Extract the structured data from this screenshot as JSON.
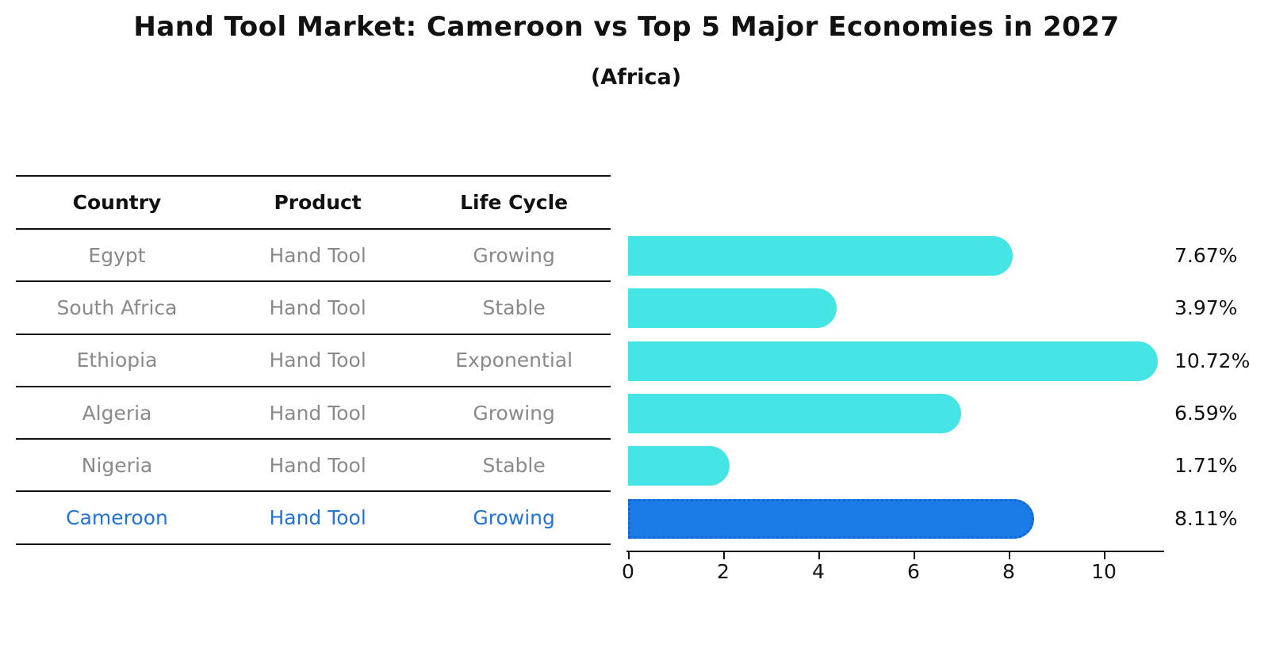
{
  "title": "Hand Tool Market: Cameroon vs Top 5 Major Economies in 2027",
  "subtitle": "(Africa)",
  "table": {
    "columns": [
      "Country",
      "Product",
      "Life Cycle"
    ],
    "rows": [
      {
        "country": "Egypt",
        "product": "Hand Tool",
        "life_cycle": "Growing",
        "highlight": false
      },
      {
        "country": "South Africa",
        "product": "Hand Tool",
        "life_cycle": "Stable",
        "highlight": false
      },
      {
        "country": "Ethiopia",
        "product": "Hand Tool",
        "life_cycle": "Exponential",
        "highlight": false
      },
      {
        "country": "Algeria",
        "product": "Hand Tool",
        "life_cycle": "Growing",
        "highlight": false
      },
      {
        "country": "Nigeria",
        "product": "Hand Tool",
        "life_cycle": "Stable",
        "highlight": false
      },
      {
        "country": "Cameroon",
        "product": "Hand Tool",
        "life_cycle": "Growing",
        "highlight": true
      }
    ]
  },
  "chart_data": {
    "type": "bar",
    "orientation": "horizontal",
    "title": "Hand Tool Market: Cameroon vs Top 5 Major Economies in 2027",
    "subtitle": "(Africa)",
    "categories": [
      "Egypt",
      "South Africa",
      "Ethiopia",
      "Algeria",
      "Nigeria",
      "Cameroon"
    ],
    "values": [
      7.67,
      3.97,
      10.72,
      6.59,
      1.71,
      8.11
    ],
    "value_labels": [
      "7.67%",
      "3.97%",
      "10.72%",
      "6.59%",
      "1.71%",
      "8.11%"
    ],
    "xlabel": "",
    "ylabel": "",
    "xticks": [
      0,
      2,
      4,
      6,
      8,
      10
    ],
    "xlim": [
      0,
      11.3
    ],
    "grid": false,
    "legend": false,
    "bar_color": "#45e5e5",
    "highlight_index": 5,
    "highlight_bar_color": "#1b7ce8",
    "highlight_border_style": "dotted",
    "highlight_text_color": "#2374d4",
    "row_text_color": "#8a8a8a"
  }
}
